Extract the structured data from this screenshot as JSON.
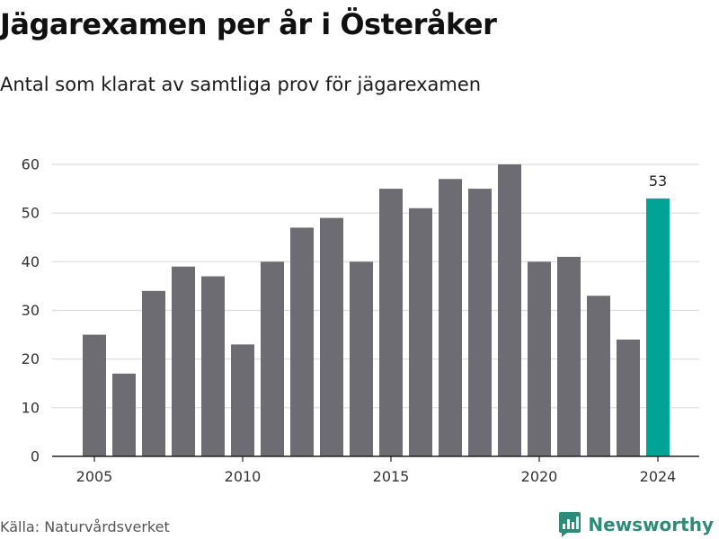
{
  "title": "Jägarexamen per år i Österåker",
  "subtitle": "Antal som klarat av samtliga prov för jägarexamen",
  "source": "Källa: Naturvårdsverket",
  "brand": {
    "name": "Newsworthy",
    "icon": "newsworthy-logo-icon",
    "color": "#2e8b7a"
  },
  "chart_data": {
    "type": "bar",
    "x": [
      2005,
      2006,
      2007,
      2008,
      2009,
      2010,
      2011,
      2012,
      2013,
      2014,
      2015,
      2016,
      2017,
      2018,
      2019,
      2020,
      2021,
      2022,
      2023,
      2024
    ],
    "values": [
      25,
      17,
      34,
      39,
      37,
      23,
      40,
      47,
      49,
      40,
      55,
      51,
      57,
      55,
      60,
      40,
      41,
      33,
      24,
      53
    ],
    "x_ticks": [
      2005,
      2010,
      2015,
      2020,
      2024
    ],
    "y_ticks": [
      0,
      10,
      20,
      30,
      40,
      50,
      60
    ],
    "ylim": [
      0,
      60
    ],
    "grid": true,
    "highlight": {
      "x": 2024,
      "label": "53"
    },
    "colors": {
      "bar": "#6d6c72",
      "highlight": "#00a497",
      "grid": "#dcdcdc",
      "axis": "#222222"
    }
  }
}
